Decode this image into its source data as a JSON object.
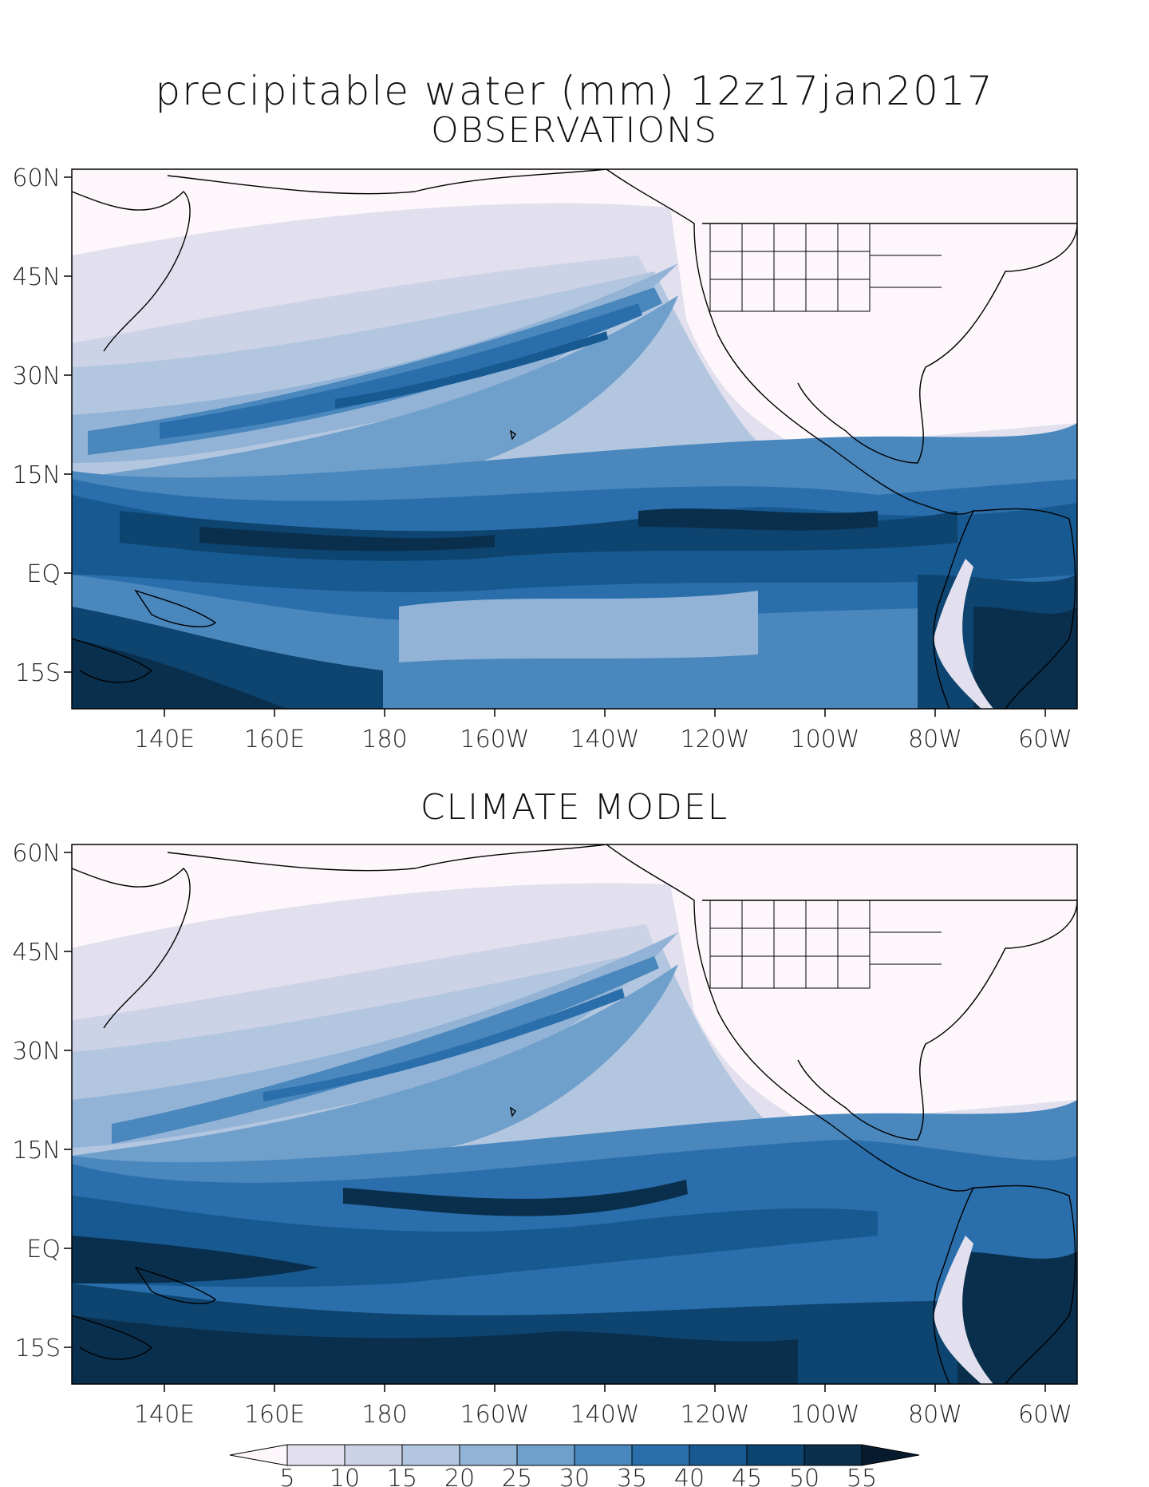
{
  "title": {
    "line1": "precipitable water (mm) 12z17jan2017",
    "line2": "OBSERVATIONS"
  },
  "panels": [
    {
      "id": "observations",
      "label": "OBSERVATIONS",
      "lat_ticks": [
        "60N",
        "45N",
        "30N",
        "15N",
        "EQ",
        "15S"
      ],
      "lon_ticks": [
        "140E",
        "160E",
        "180",
        "160W",
        "140W",
        "120W",
        "100W",
        "80W",
        "60W"
      ]
    },
    {
      "id": "climate-model",
      "label": "CLIMATE MODEL",
      "lat_ticks": [
        "60N",
        "45N",
        "30N",
        "15N",
        "EQ",
        "15S"
      ],
      "lon_ticks": [
        "140E",
        "160E",
        "180",
        "160W",
        "140W",
        "120W",
        "100W",
        "80W",
        "60W"
      ]
    }
  ],
  "colorbar": {
    "levels": [
      "5",
      "10",
      "15",
      "20",
      "25",
      "30",
      "35",
      "40",
      "45",
      "50",
      "55"
    ],
    "colors": [
      "#fdf6fb",
      "#e2e0ee",
      "#cdd3e6",
      "#b3c6df",
      "#92b3d6",
      "#6f9fcb",
      "#4987bd",
      "#2a6fab",
      "#175a92",
      "#0e4470",
      "#0a2f4d",
      "#061c2e"
    ]
  }
}
